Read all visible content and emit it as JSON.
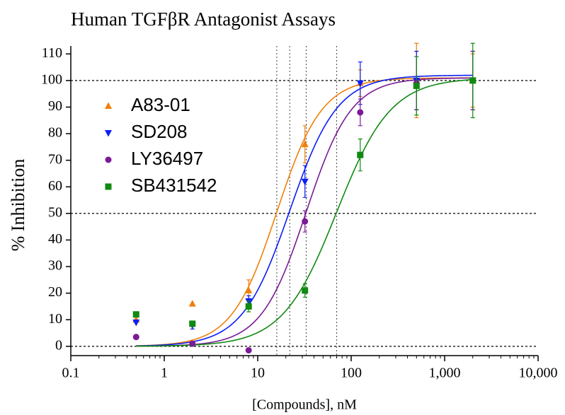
{
  "chart_data": {
    "type": "scatter",
    "title": "Human TGFβR Antagonist Assays",
    "xlabel": "[Compounds], nM",
    "ylabel": "% Inhibition",
    "xscale": "log",
    "xlim": [
      0.1,
      10000
    ],
    "xticks": [
      0.1,
      1,
      10,
      100,
      {
        "value": 1000,
        "label": "1,000"
      },
      {
        "value": 10000,
        "label": "10,000"
      }
    ],
    "ylim": [
      -3.5,
      113
    ],
    "yticks": [
      0,
      10,
      20,
      30,
      40,
      50,
      60,
      70,
      80,
      90,
      100,
      110
    ],
    "hlines": [
      0,
      50,
      100
    ],
    "legend": "upper left",
    "x": [
      0.5,
      2,
      8,
      32,
      125,
      500,
      2000
    ],
    "series": [
      {
        "name": "A83-01",
        "color": "#f07f09",
        "marker": "triangle-up",
        "values": [
          10,
          16,
          21,
          76,
          99,
          100,
          100
        ],
        "errors": [
          null,
          null,
          4,
          7,
          5,
          14,
          10
        ],
        "fit": {
          "bottom": 0,
          "top": 101,
          "ic50": 16,
          "hill": 1.8
        }
      },
      {
        "name": "SD208",
        "color": "#0a1ef5",
        "marker": "triangle-down",
        "values": [
          9,
          8,
          17,
          62,
          99,
          100,
          100
        ],
        "errors": [
          null,
          1.5,
          2,
          6,
          8,
          11,
          11
        ],
        "fit": {
          "bottom": 0,
          "top": 102,
          "ic50": 22,
          "hill": 1.7
        }
      },
      {
        "name": "LY36497",
        "color": "#7b1a96",
        "marker": "circle",
        "values": [
          3.5,
          1,
          -1.5,
          47,
          88,
          99,
          100
        ],
        "errors": [
          null,
          null,
          null,
          4,
          5,
          10,
          11
        ],
        "fit": {
          "bottom": 0,
          "top": 101,
          "ic50": 33,
          "hill": 1.8
        }
      },
      {
        "name": "SB431542",
        "color": "#108a10",
        "marker": "square",
        "values": [
          12,
          8.5,
          15,
          21,
          72,
          98,
          100
        ],
        "errors": [
          null,
          1,
          2,
          2.5,
          6,
          11,
          14
        ],
        "fit": {
          "bottom": 0,
          "top": 101,
          "ic50": 70,
          "hill": 1.5
        }
      }
    ]
  }
}
